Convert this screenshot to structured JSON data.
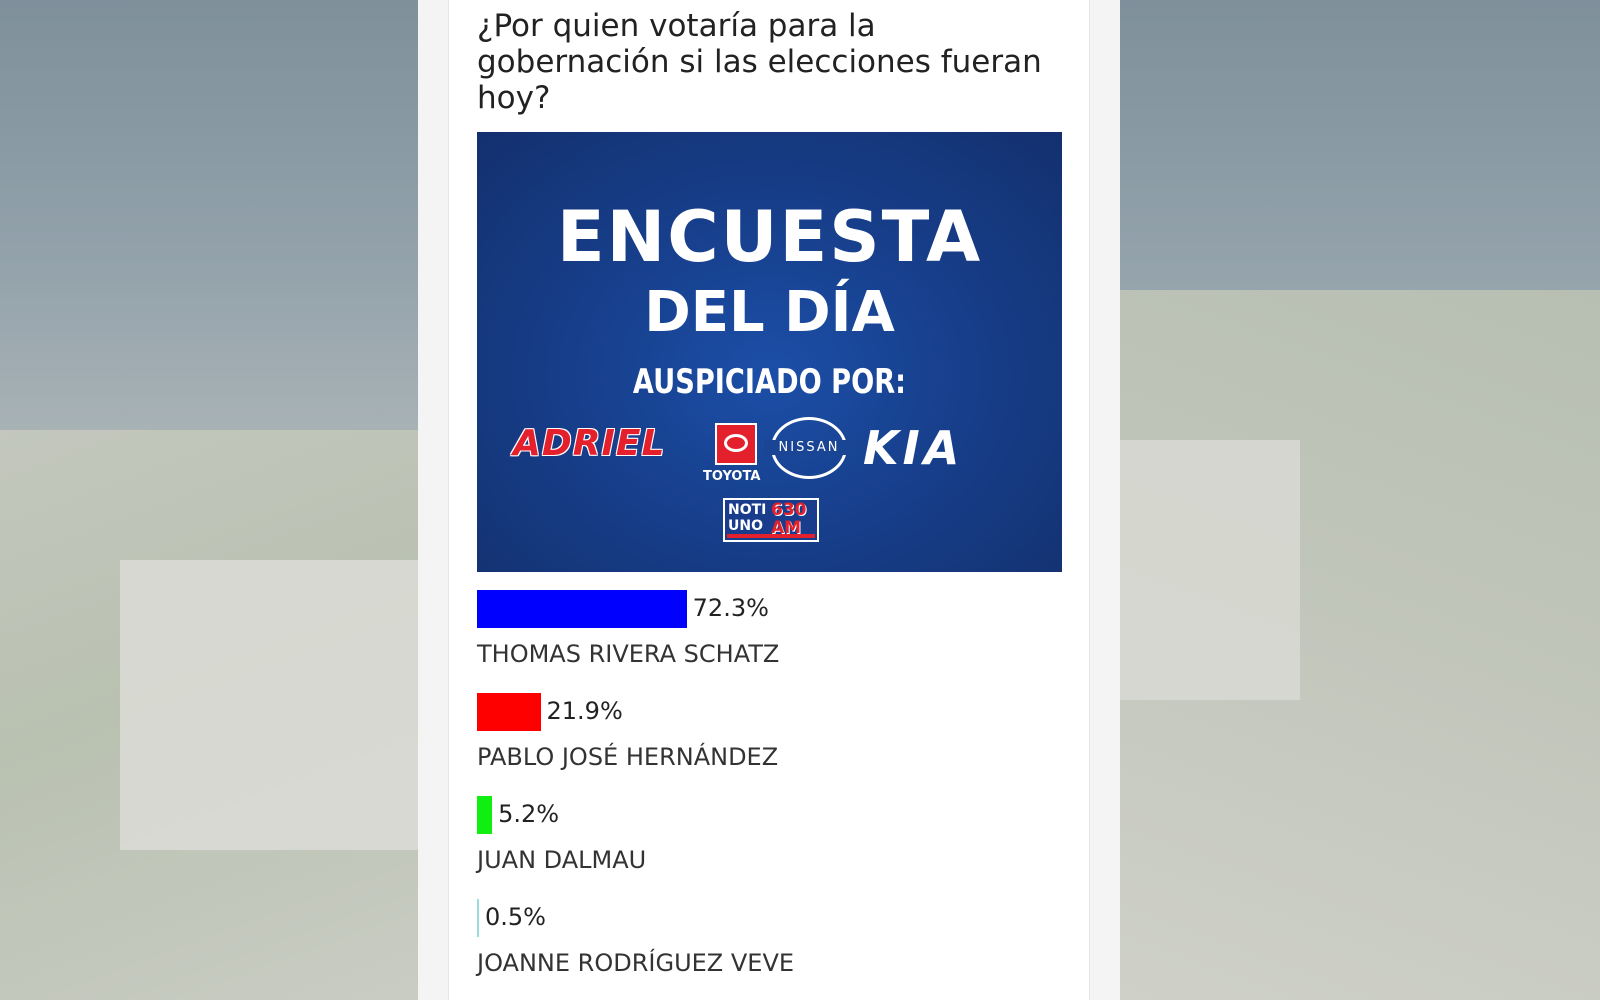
{
  "poll": {
    "question": "¿Por quien votaría para la gobernación si las elecciones fueran hoy?",
    "banner": {
      "line1": "ENCUESTA",
      "line2": "DEL DÍA",
      "line3": "AUSPICIADO POR:",
      "sponsor_adriel": "ADRIEL",
      "sponsor_toyota": "TOYOTA",
      "sponsor_nissan": "NISSAN",
      "sponsor_kia": "KIA",
      "radio_noti": "NOTI",
      "radio_uno": "UNO",
      "radio_freq": "630",
      "radio_band": "AM"
    }
  },
  "colors": {
    "banner_blue": "#173f8c",
    "brand_red": "#e4202c"
  },
  "chart_data": {
    "type": "bar",
    "orientation": "horizontal",
    "categories": [
      "THOMAS RIVERA SCHATZ",
      "PABLO JOSÉ HERNÁNDEZ",
      "JUAN DALMAU",
      "JOANNE RODRÍGUEZ VEVE"
    ],
    "values": [
      72.3,
      21.9,
      5.2,
      0.5
    ],
    "labels": [
      "72.3%",
      "21.9%",
      "5.2%",
      "0.5%"
    ],
    "colors": [
      "#0000ff",
      "#ff0000",
      "#11ee11",
      "#99dddd"
    ],
    "title": "",
    "xlabel": "",
    "ylabel": "",
    "xlim": [
      0,
      100
    ],
    "grid": false
  }
}
